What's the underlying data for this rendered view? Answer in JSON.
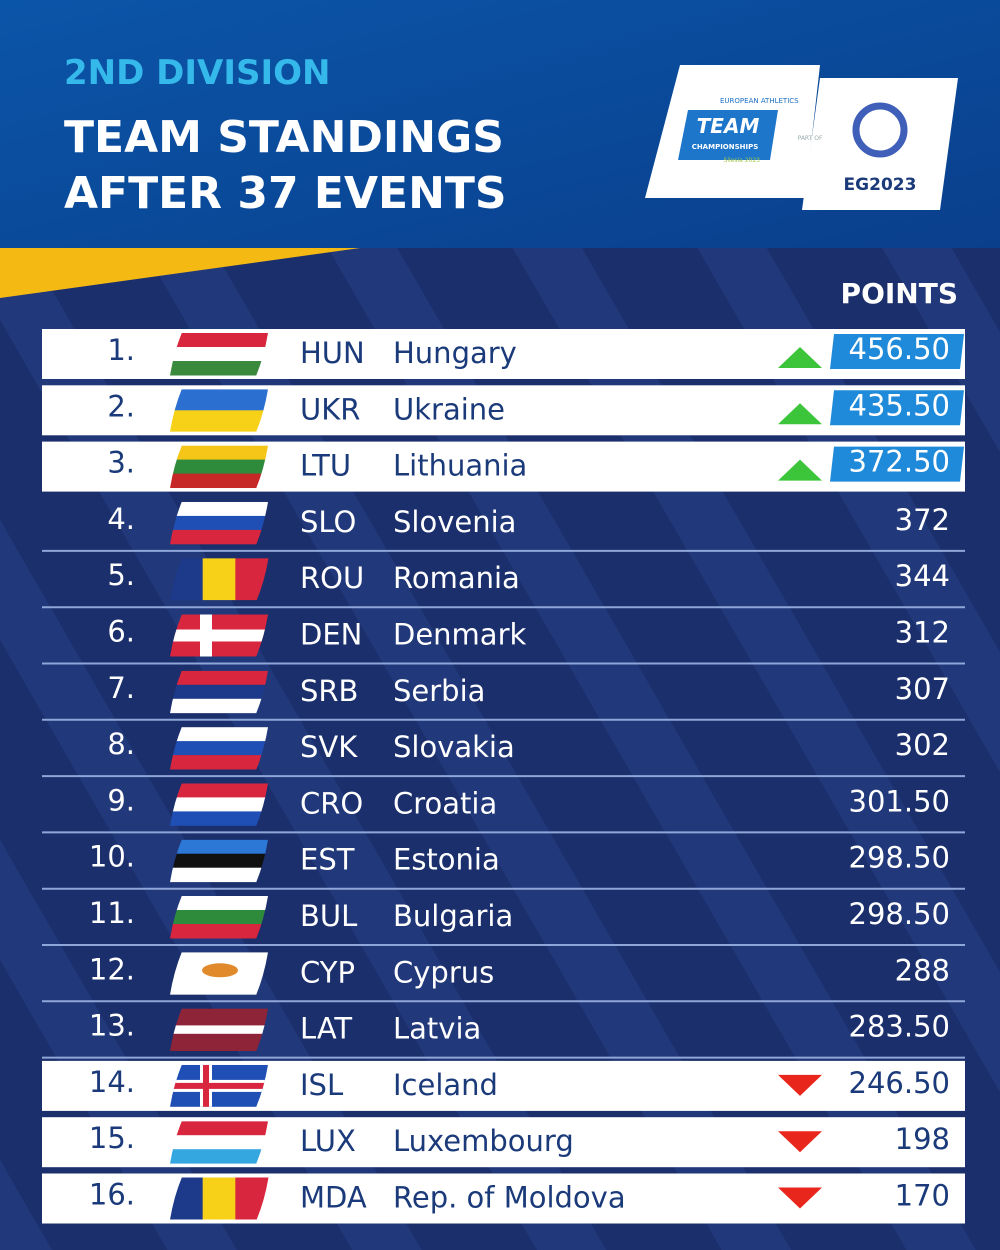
{
  "header": {
    "division": "2ND DIVISION",
    "title_lines": [
      "TEAM STANDINGS",
      "AFTER 37 EVENTS"
    ]
  },
  "logos": {
    "team_top": "EUROPEAN ATHLETICS",
    "team_main": "TEAM",
    "team_sub": "CHAMPIONSHIPS",
    "team_place": "Silesia 2023",
    "part_of": "PART OF",
    "games": "EG2023"
  },
  "standings": {
    "points_header": "POINTS",
    "rows": [
      {
        "rank": "1.",
        "code": "HUN",
        "name": "Hungary",
        "points": "456.50",
        "trend": "up"
      },
      {
        "rank": "2.",
        "code": "UKR",
        "name": "Ukraine",
        "points": "435.50",
        "trend": "up"
      },
      {
        "rank": "3.",
        "code": "LTU",
        "name": "Lithuania",
        "points": "372.50",
        "trend": "up"
      },
      {
        "rank": "4.",
        "code": "SLO",
        "name": "Slovenia",
        "points": "372"
      },
      {
        "rank": "5.",
        "code": "ROU",
        "name": "Romania",
        "points": "344"
      },
      {
        "rank": "6.",
        "code": "DEN",
        "name": "Denmark",
        "points": "312"
      },
      {
        "rank": "7.",
        "code": "SRB",
        "name": "Serbia",
        "points": "307"
      },
      {
        "rank": "8.",
        "code": "SVK",
        "name": "Slovakia",
        "points": "302"
      },
      {
        "rank": "9.",
        "code": "CRO",
        "name": "Croatia",
        "points": "301.50"
      },
      {
        "rank": "10.",
        "code": "EST",
        "name": "Estonia",
        "points": "298.50"
      },
      {
        "rank": "11.",
        "code": "BUL",
        "name": "Bulgaria",
        "points": "298.50"
      },
      {
        "rank": "12.",
        "code": "CYP",
        "name": "Cyprus",
        "points": "288"
      },
      {
        "rank": "13.",
        "code": "LAT",
        "name": "Latvia",
        "points": "283.50"
      },
      {
        "rank": "14.",
        "code": "ISL",
        "name": "Iceland",
        "points": "246.50",
        "trend": "down"
      },
      {
        "rank": "15.",
        "code": "LUX",
        "name": "Luxembourg",
        "points": "198",
        "trend": "down"
      },
      {
        "rank": "16.",
        "code": "MDA",
        "name": "Rep. of Moldova",
        "points": "170",
        "trend": "down"
      }
    ]
  }
}
